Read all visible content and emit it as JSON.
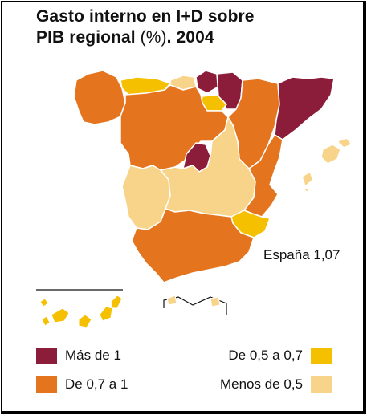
{
  "title": {
    "line1": "Gasto interno en I+D sobre",
    "line2_prefix": "PIB regional ",
    "line2_paren": "(%)",
    "line2_suffix": ". 2004"
  },
  "national_value": "España 1,07",
  "colors": {
    "mas_de_1": "#8c1d3a",
    "de_07_a_1": "#e4751e",
    "de_05_a_07": "#f5c000",
    "menos_de_05": "#f8d48a",
    "outline": "#ffffff"
  },
  "legend": [
    {
      "key": "mas_de_1",
      "label": "Más de 1"
    },
    {
      "key": "de_07_a_1",
      "label": "De 0,7 a 1"
    },
    {
      "key": "de_05_a_07",
      "label": "De 0,5 a 0,7"
    },
    {
      "key": "menos_de_05",
      "label": "Menos de 0,5"
    }
  ]
}
